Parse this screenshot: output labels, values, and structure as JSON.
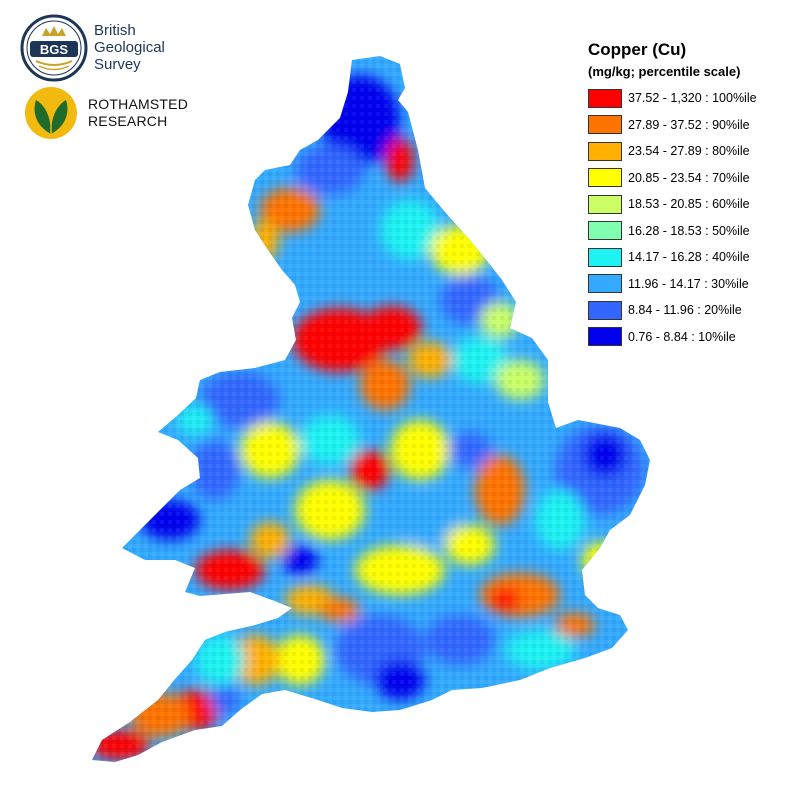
{
  "logos": {
    "bgs": {
      "seal_text": "BGS",
      "line1": "British",
      "line2": "Geological",
      "line3": "Survey"
    },
    "rothamsted": {
      "line1": "ROTHAMSTED",
      "line2": "RESEARCH"
    }
  },
  "legend": {
    "title": "Copper (Cu)",
    "subtitle": "(mg/kg; percentile scale)",
    "items": [
      {
        "label": "37.52 - 1,320 : 100%ile",
        "color": "#ff0000"
      },
      {
        "label": "27.89 - 37.52 : 90%ile",
        "color": "#ff7300"
      },
      {
        "label": "23.54 - 27.89 : 80%ile",
        "color": "#ffb000"
      },
      {
        "label": "20.85 - 23.54 : 70%ile",
        "color": "#ffff00"
      },
      {
        "label": "18.53 - 20.85 : 60%ile",
        "color": "#ccff66"
      },
      {
        "label": "16.28 - 18.53 : 50%ile",
        "color": "#80ffb0"
      },
      {
        "label": "14.17 - 16.28 : 40%ile",
        "color": "#1ef2f2"
      },
      {
        "label": "11.96 - 14.17 : 30%ile",
        "color": "#33aaff"
      },
      {
        "label": "8.84 - 11.96 : 20%ile",
        "color": "#3366ff"
      },
      {
        "label": "0.76 - 8.84 : 10%ile",
        "color": "#0000ee"
      }
    ]
  },
  "map": {
    "subject": "England and Wales soil copper concentration"
  }
}
